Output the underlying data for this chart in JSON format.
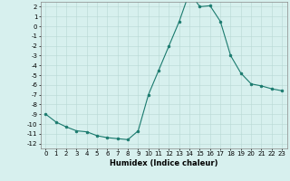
{
  "x": [
    0,
    1,
    2,
    3,
    4,
    5,
    6,
    7,
    8,
    9,
    10,
    11,
    12,
    13,
    14,
    15,
    16,
    17,
    18,
    19,
    20,
    21,
    22,
    23
  ],
  "y": [
    -9,
    -9.8,
    -10.3,
    -10.7,
    -10.8,
    -11.2,
    -11.4,
    -11.5,
    -11.6,
    -10.7,
    -7.0,
    -4.5,
    -2.0,
    0.5,
    3.5,
    2.0,
    2.1,
    0.5,
    -3.0,
    -4.8,
    -5.9,
    -6.1,
    -6.4,
    -6.6
  ],
  "xlabel": "Humidex (Indice chaleur)",
  "xlim": [
    -0.5,
    23.5
  ],
  "ylim": [
    -12.5,
    2.5
  ],
  "yticks": [
    2,
    1,
    0,
    -1,
    -2,
    -3,
    -4,
    -5,
    -6,
    -7,
    -8,
    -9,
    -10,
    -11,
    -12
  ],
  "xticks": [
    0,
    1,
    2,
    3,
    4,
    5,
    6,
    7,
    8,
    9,
    10,
    11,
    12,
    13,
    14,
    15,
    16,
    17,
    18,
    19,
    20,
    21,
    22,
    23
  ],
  "line_color": "#1a7a6e",
  "marker_size": 2.0,
  "bg_color": "#d7f0ee",
  "grid_color": "#b8d8d4",
  "label_fontsize": 6.0,
  "tick_fontsize": 5.0
}
